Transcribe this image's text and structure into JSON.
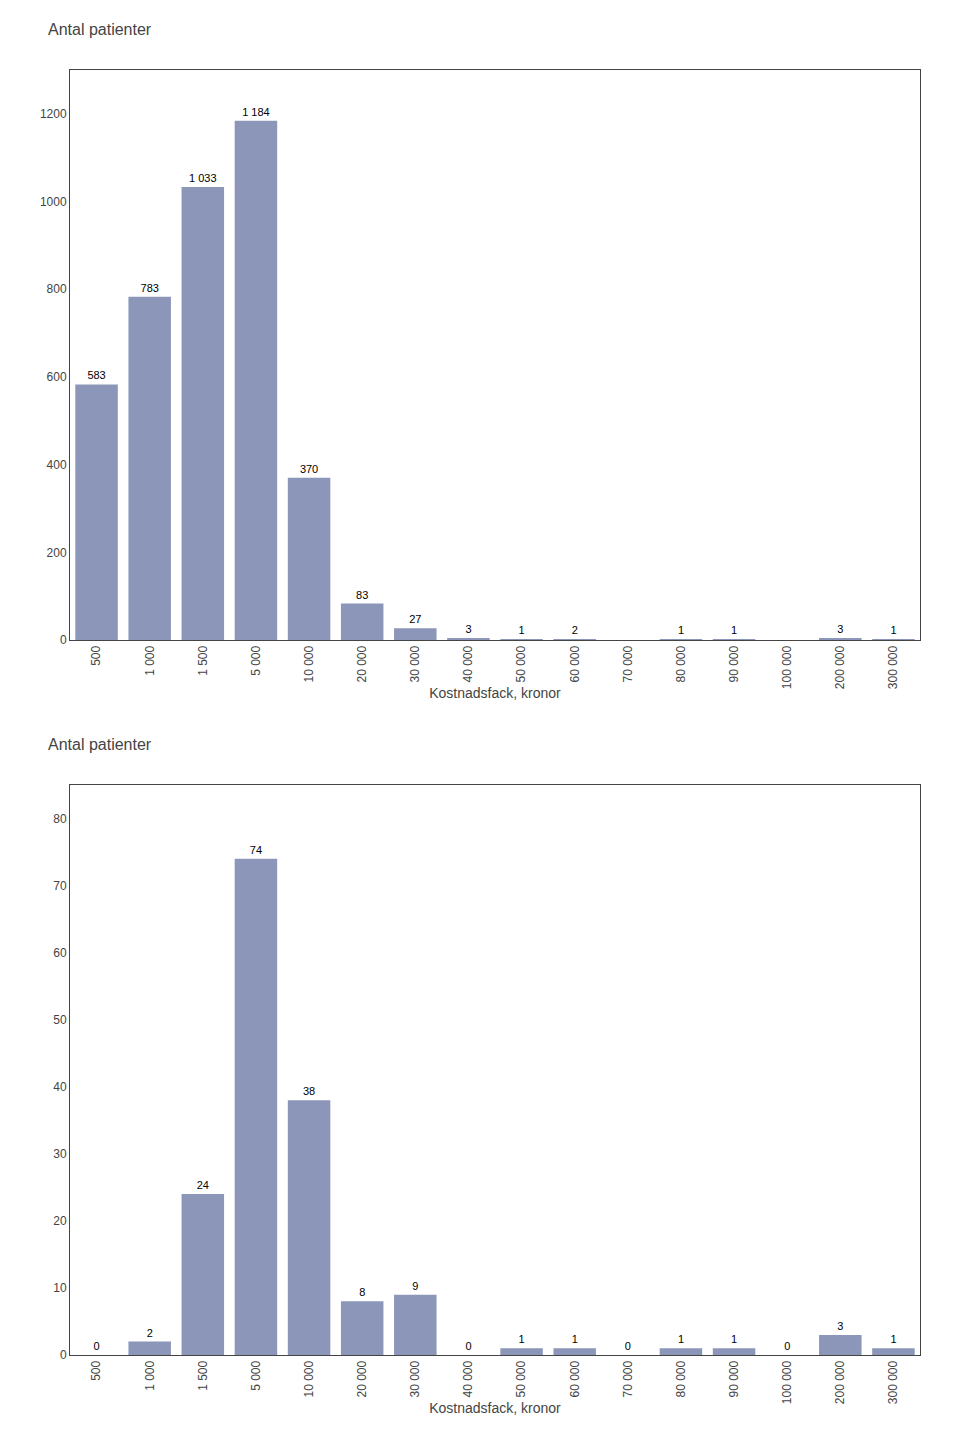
{
  "chart_data": [
    {
      "type": "bar",
      "title": "Antal patienter",
      "xlabel": "Kostnadsfack, kronor",
      "categories": [
        "500",
        "1 000",
        "1 500",
        "5 000",
        "10 000",
        "20 000",
        "30 000",
        "40 000",
        "50 000",
        "60 000",
        "70 000",
        "80 000",
        "90 000",
        "100 000",
        "200 000",
        "300 000"
      ],
      "values": [
        583,
        783,
        1033,
        1184,
        370,
        83,
        27,
        3,
        1,
        2,
        0,
        1,
        1,
        0,
        3,
        1
      ],
      "value_labels": [
        "583",
        "783",
        "1 033",
        "1 184",
        "370",
        "83",
        "27",
        "3",
        "1",
        "2",
        null,
        "1",
        "1",
        null,
        "3",
        "1"
      ],
      "data_labels": true,
      "color": "#8b96b8",
      "grid": false,
      "ylim": [
        0,
        1300
      ],
      "yticks": [
        0,
        200,
        400,
        600,
        800,
        1000,
        1200
      ]
    },
    {
      "type": "bar",
      "title": "Antal patienter",
      "xlabel": "Kostnadsfack, kronor",
      "categories": [
        "500",
        "1 000",
        "1 500",
        "5 000",
        "10 000",
        "20 000",
        "30 000",
        "40 000",
        "50 000",
        "60 000",
        "70 000",
        "80 000",
        "90 000",
        "100 000",
        "200 000",
        "300 000"
      ],
      "values": [
        0,
        2,
        24,
        74,
        38,
        8,
        9,
        0,
        1,
        1,
        0,
        1,
        1,
        0,
        3,
        1
      ],
      "data_labels": true,
      "color": "#8b96b8",
      "grid": false,
      "ylim": [
        0,
        85
      ],
      "yticks": [
        0,
        10,
        20,
        30,
        40,
        50,
        60,
        70,
        80
      ]
    }
  ]
}
